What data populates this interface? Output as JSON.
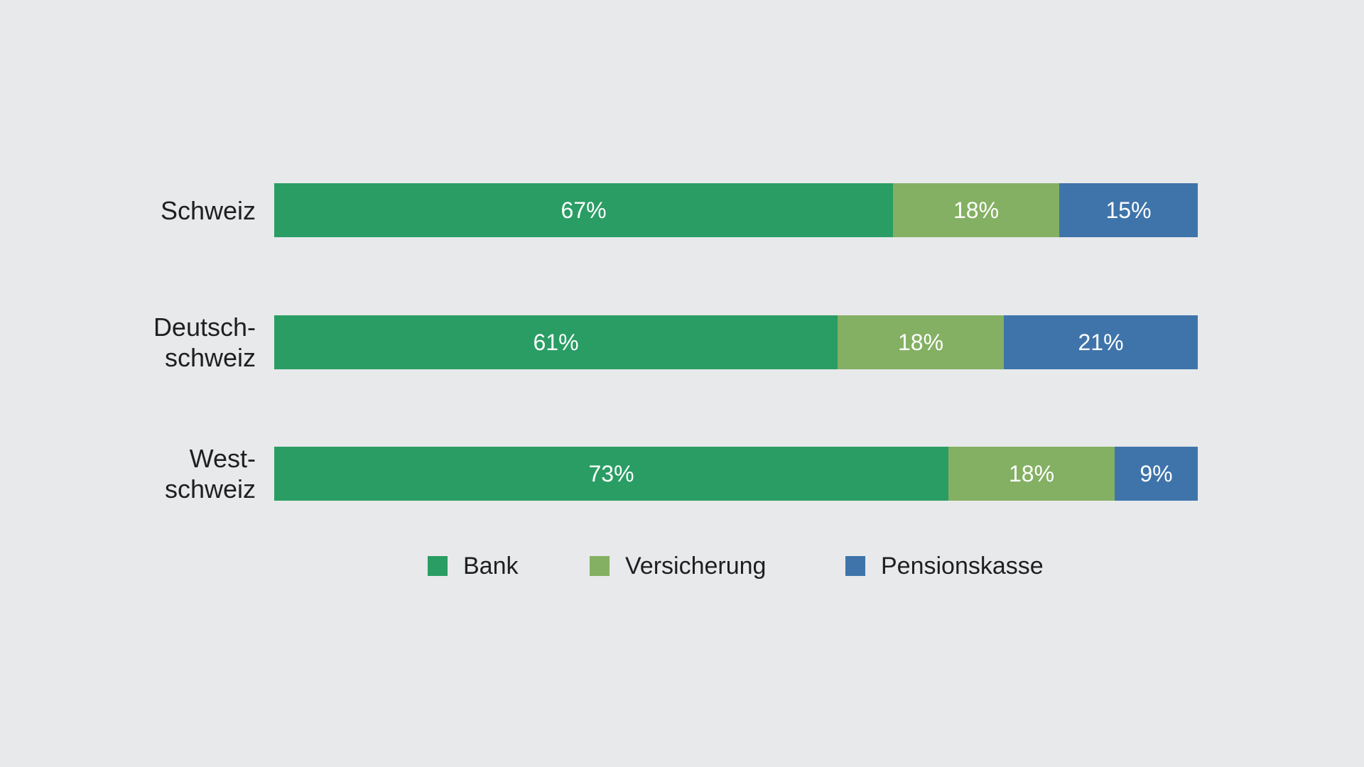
{
  "chart_data": {
    "type": "bar",
    "orientation": "horizontal",
    "stacked": true,
    "categories": [
      "Schweiz",
      "Deutsch-\nschweiz",
      "West-\nschweiz"
    ],
    "series": [
      {
        "name": "Bank",
        "color": "#2a9d64",
        "values": [
          67,
          61,
          73
        ],
        "labels": [
          "67%",
          "61%",
          "73%"
        ]
      },
      {
        "name": "Versicherung",
        "color": "#84b063",
        "values": [
          18,
          18,
          18
        ],
        "labels": [
          "18%",
          "18%",
          "18%"
        ]
      },
      {
        "name": "Pensionskasse",
        "color": "#3f74aa",
        "values": [
          15,
          21,
          9
        ],
        "labels": [
          "15%",
          "21%",
          "9%"
        ]
      }
    ],
    "xlim": [
      0,
      100
    ],
    "grid": false,
    "legend_position": "bottom"
  }
}
